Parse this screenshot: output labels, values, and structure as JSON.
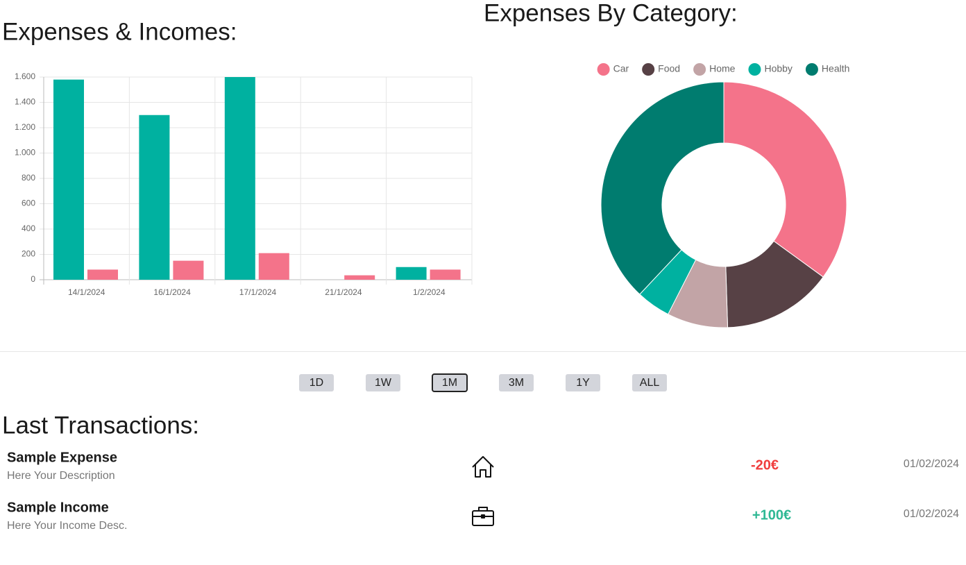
{
  "chart_data": [
    {
      "type": "bar",
      "title": "Expenses & Incomes:",
      "categories": [
        "14/1/2024",
        "16/1/2024",
        "17/1/2024",
        "21/1/2024",
        "1/2/2024"
      ],
      "series": [
        {
          "color": "#00b1a0",
          "values": [
            1580,
            1300,
            1600,
            0,
            100
          ]
        },
        {
          "color": "#f4738a",
          "values": [
            80,
            150,
            210,
            35,
            80
          ]
        }
      ],
      "ylim": [
        0,
        1600
      ],
      "yticks": [
        0,
        200,
        400,
        600,
        800,
        {
          "value": 1000,
          "label": "1.000"
        },
        {
          "value": 1200,
          "label": "1.200"
        },
        {
          "value": 1400,
          "label": "1.400"
        },
        {
          "value": 1600,
          "label": "1.600"
        }
      ],
      "grid": true
    },
    {
      "type": "doughnut",
      "title": "Expenses By Category:",
      "categories": [
        "Car",
        "Food",
        "Home",
        "Hobby",
        "Health"
      ],
      "values": [
        35,
        14.5,
        8,
        4.5,
        38
      ],
      "colors": [
        "#f4738a",
        "#574145",
        "#c2a4a6",
        "#00b1a0",
        "#007c6f"
      ],
      "legend": "top"
    }
  ],
  "timeframes": {
    "options": [
      "1D",
      "1W",
      "1M",
      "3M",
      "1Y",
      "ALL"
    ],
    "selected": "1M"
  },
  "transactions": {
    "title": "Last Transactions:",
    "items": [
      {
        "name": "Sample Expense",
        "description": "Here Your Description",
        "amount": "-20€",
        "date": "01/02/2024"
      },
      {
        "name": "Sample Income",
        "description": "Here Your Income Desc.",
        "amount": "+100€",
        "date": "01/02/2024"
      }
    ]
  }
}
